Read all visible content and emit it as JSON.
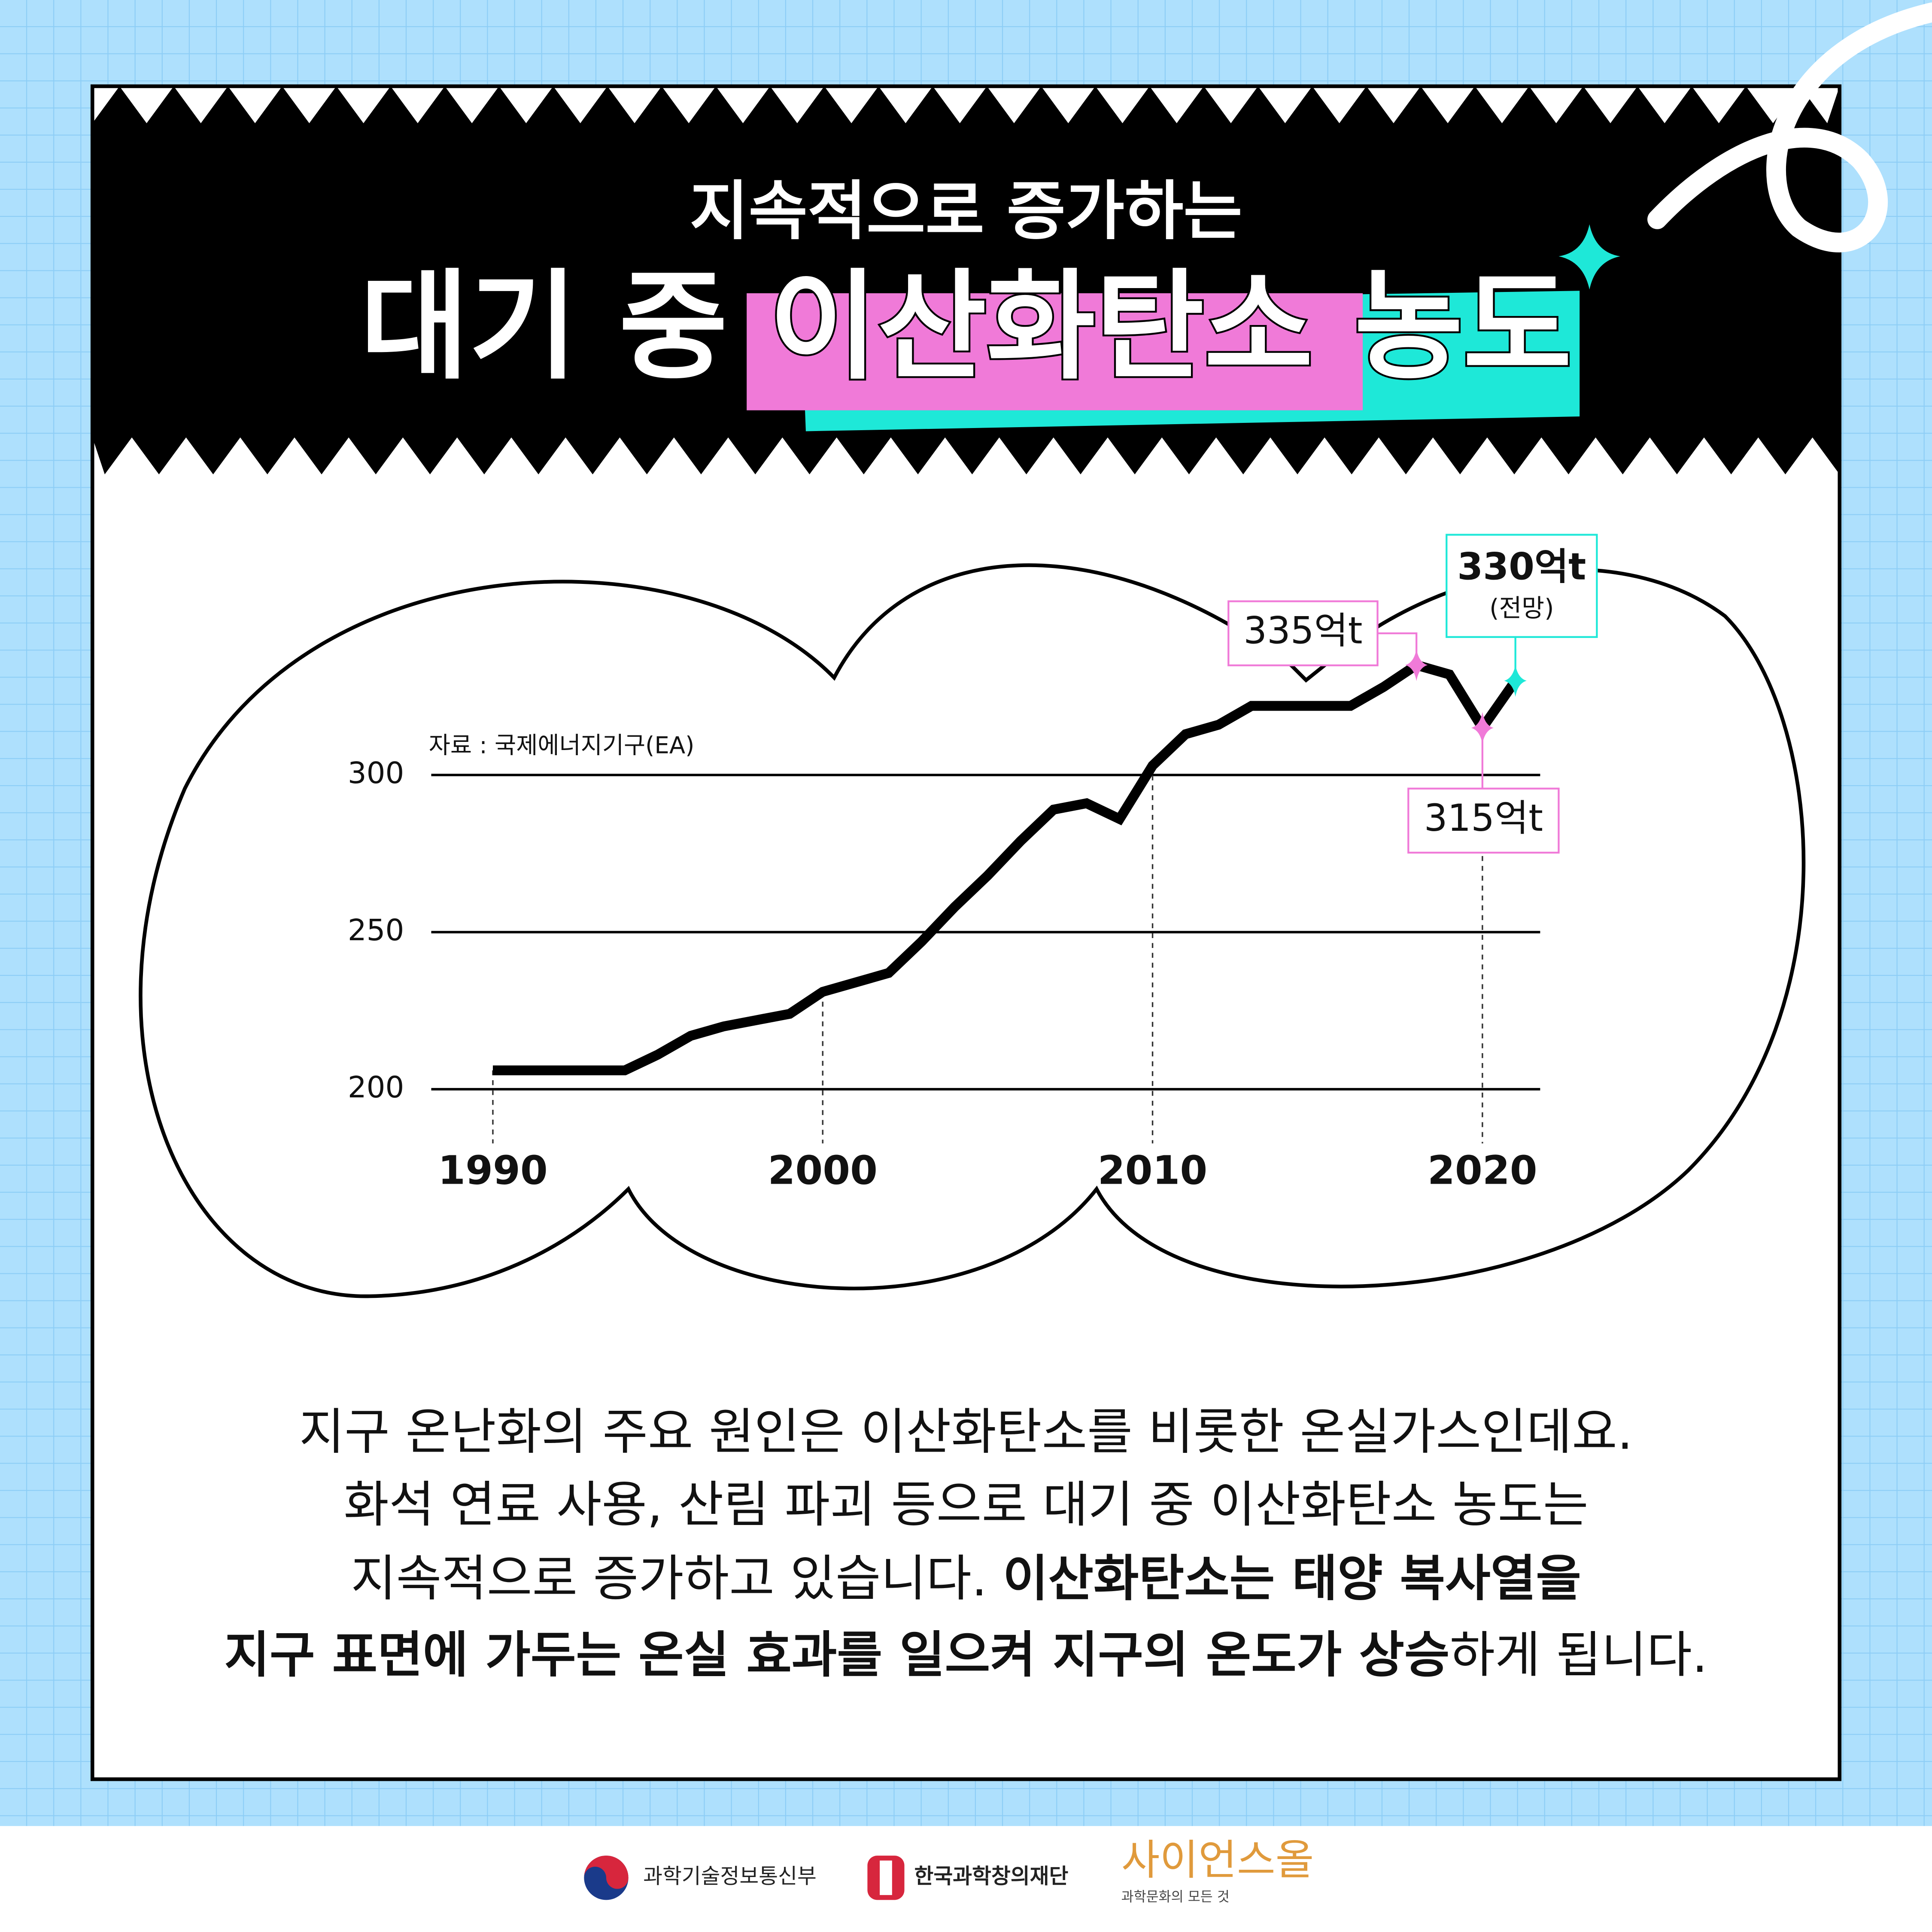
{
  "chart_data": {
    "type": "line",
    "subtitle": "지속적으로 증가하는",
    "title": "대기 중 이산화탄소 농도",
    "source": "자료 : 국제에너지기구(EA)",
    "x": [
      1990,
      1991,
      1992,
      1993,
      1994,
      1995,
      1996,
      1997,
      1998,
      1999,
      2000,
      2001,
      2002,
      2003,
      2004,
      2005,
      2006,
      2007,
      2008,
      2009,
      2010,
      2011,
      2012,
      2013,
      2014,
      2015,
      2016,
      2017,
      2018,
      2019,
      2020,
      2021
    ],
    "values": [
      206,
      206,
      206,
      206,
      206,
      211,
      217,
      220,
      222,
      224,
      231,
      234,
      237,
      247,
      258,
      268,
      279,
      289,
      291,
      286,
      303,
      313,
      316,
      322,
      322,
      322,
      322,
      328,
      335,
      332,
      315,
      330
    ],
    "color": "#000000",
    "xlim": [
      1988,
      2024
    ],
    "ylim": [
      190,
      340
    ],
    "xticks": [
      1990,
      2000,
      2010,
      2020
    ],
    "yticks": [
      200,
      250,
      300
    ],
    "grid": true,
    "annotations": [
      {
        "x": 2018,
        "value": 335,
        "label": "335억t",
        "color": "#f07ad8"
      },
      {
        "x": 2020,
        "value": 315,
        "label": "315억t",
        "color": "#f07ad8"
      },
      {
        "x": 2021,
        "value": 330,
        "label": "330억t",
        "note": "(전망)",
        "color": "#1ee8d8"
      }
    ]
  },
  "body": [
    [
      {
        "text": "지구 온난화의 주요 원인은 이산화탄소를 비롯한 온실가스인데요.",
        "bold": false
      }
    ],
    [
      {
        "text": "화석 연료 사용, 산림 파괴 등으로 대기 중 이산화탄소 농도는",
        "bold": false
      }
    ],
    [
      {
        "text": "지속적으로 증가하고 있습니다. ",
        "bold": false
      },
      {
        "text": "이산화탄소는 태양 복사열을",
        "bold": true
      }
    ],
    [
      {
        "text": "지구 표면에 가두는 온실 효과를 일으켜 지구의 온도가 상승",
        "bold": true
      },
      {
        "text": "하게 됩니다.",
        "bold": false
      }
    ]
  ],
  "footer": {
    "ministry": "과학기술정보통신부",
    "foundation": "한국과학창의재단",
    "brand": "사이언스올",
    "brand_tagline": "과학문화의 모든 것"
  }
}
